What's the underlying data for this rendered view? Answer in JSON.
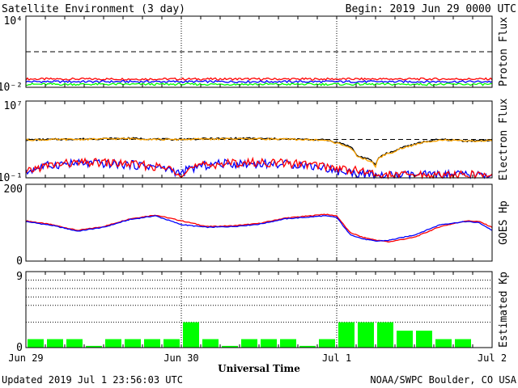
{
  "header": {
    "title": "Satellite Environment (3 day)",
    "begin": "Begin:  2019 Jun 29 0000 UTC"
  },
  "footer": {
    "updated": "Updated 2019 Jul  1 23:56:03 UTC",
    "credit": "NOAA/SWPC Boulder, CO USA"
  },
  "xaxis": {
    "label": "Universal Time",
    "ticks": [
      "Jun 29",
      "Jun 30",
      "Jul 1",
      "Jul 2"
    ]
  },
  "colors": {
    "red": "#ff0000",
    "blue": "#0000ff",
    "green": "#00ff00",
    "orange": "#ffa500",
    "black": "#000000"
  },
  "chart_data": [
    {
      "type": "line",
      "ylabel": "Proton Flux",
      "yscale": "log",
      "ylim": [
        0.01,
        10000
      ],
      "ytick_labels": [
        "10⁴",
        "10⁻²"
      ],
      "x_range_hours": [
        0,
        72
      ],
      "threshold": 10,
      "series": [
        {
          "color": "#ff0000",
          "x": [
            0,
            12,
            24,
            36,
            48,
            60,
            72
          ],
          "values": [
            0.05,
            0.05,
            0.05,
            0.05,
            0.05,
            0.05,
            0.05
          ]
        },
        {
          "color": "#0000ff",
          "x": [
            0,
            12,
            24,
            36,
            48,
            60,
            72
          ],
          "values": [
            0.03,
            0.03,
            0.03,
            0.03,
            0.03,
            0.03,
            0.03
          ]
        },
        {
          "color": "#00ff00",
          "x": [
            0,
            12,
            24,
            36,
            48,
            60,
            72
          ],
          "values": [
            0.018,
            0.018,
            0.018,
            0.018,
            0.018,
            0.018,
            0.018
          ]
        }
      ]
    },
    {
      "type": "line",
      "ylabel": "Electron Flux",
      "yscale": "log",
      "ylim": [
        0.1,
        10000000
      ],
      "ytick_labels": [
        "10⁷",
        "10⁻¹"
      ],
      "x_range_hours": [
        0,
        72
      ],
      "threshold": 1000,
      "series": [
        {
          "color": "#000000",
          "x": [
            0,
            8,
            16,
            22,
            28,
            34,
            40,
            46,
            48,
            51,
            54,
            57,
            60,
            64,
            68,
            72
          ],
          "values": [
            900,
            1100,
            1300,
            1000,
            1200,
            1300,
            1100,
            900,
            500,
            20,
            2,
            60,
            300,
            1000,
            700,
            800
          ]
        },
        {
          "color": "#ffa500",
          "x": [
            0,
            8,
            16,
            22,
            28,
            34,
            40,
            46,
            48,
            51,
            54,
            57,
            60,
            64,
            68,
            72
          ],
          "values": [
            900,
            1000,
            1200,
            950,
            1100,
            1200,
            1050,
            850,
            400,
            15,
            1.5,
            50,
            250,
            900,
            650,
            750
          ]
        },
        {
          "color": "#0000ff",
          "x": [
            0,
            6,
            12,
            18,
            24,
            30,
            36,
            42,
            48,
            54,
            60,
            66,
            72
          ],
          "values": [
            0.3,
            3,
            3,
            2,
            0.2,
            3,
            3,
            2.5,
            0.5,
            0.15,
            0.2,
            0.2,
            0.2
          ]
        },
        {
          "color": "#ff0000",
          "x": [
            0,
            6,
            12,
            18,
            24,
            30,
            36,
            42,
            48,
            54,
            60,
            66,
            72
          ],
          "values": [
            0.2,
            3,
            4,
            2,
            0.3,
            3,
            4,
            3,
            1,
            0.2,
            0.2,
            0.2,
            0.2
          ]
        }
      ]
    },
    {
      "type": "line",
      "ylabel": "GOES Hp",
      "ylim": [
        0,
        200
      ],
      "ytick_labels": [
        "200",
        "0"
      ],
      "x_range_hours": [
        0,
        72
      ],
      "series": [
        {
          "color": "#ff0000",
          "x": [
            0,
            4,
            8,
            12,
            16,
            20,
            24,
            28,
            32,
            36,
            40,
            44,
            46,
            48,
            50,
            52,
            54,
            56,
            60,
            64,
            68,
            70,
            72
          ],
          "values": [
            105,
            95,
            80,
            90,
            110,
            120,
            105,
            90,
            92,
            98,
            112,
            118,
            122,
            118,
            75,
            62,
            55,
            50,
            62,
            90,
            105,
            103,
            88
          ]
        },
        {
          "color": "#0000ff",
          "x": [
            0,
            4,
            8,
            12,
            16,
            20,
            24,
            28,
            32,
            36,
            40,
            44,
            46,
            48,
            50,
            52,
            54,
            56,
            60,
            64,
            68,
            70,
            72
          ],
          "values": [
            103,
            93,
            78,
            88,
            108,
            118,
            95,
            88,
            90,
            96,
            110,
            115,
            118,
            114,
            70,
            58,
            52,
            54,
            68,
            95,
            103,
            100,
            80
          ]
        }
      ]
    },
    {
      "type": "bar",
      "ylabel": "Estimated Kp",
      "ylim": [
        0,
        9
      ],
      "ytick_labels": [
        "9",
        "0"
      ],
      "color": "#00ff00",
      "values": [
        1,
        1,
        1,
        0.2,
        1,
        1,
        1,
        1,
        3,
        1,
        0.2,
        1,
        1,
        1,
        0.2,
        1,
        3,
        3,
        3,
        2,
        2,
        1,
        1,
        0
      ]
    }
  ]
}
